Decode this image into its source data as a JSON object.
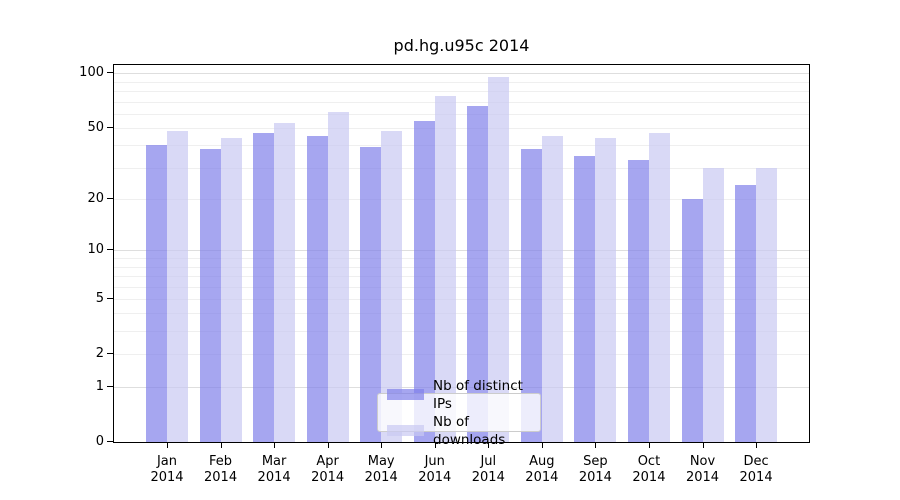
{
  "figure": {
    "background": "#ffffff",
    "frame_color": "#000000"
  },
  "chart_data": {
    "type": "bar",
    "title": "pd.hg.u95c 2014",
    "months": [
      "Jan",
      "Feb",
      "Mar",
      "Apr",
      "May",
      "Jun",
      "Jul",
      "Aug",
      "Sep",
      "Oct",
      "Nov",
      "Dec"
    ],
    "year_label": "2014",
    "categories": [
      "Jan 2014",
      "Feb 2014",
      "Mar 2014",
      "Apr 2014",
      "May 2014",
      "Jun 2014",
      "Jul 2014",
      "Aug 2014",
      "Sep 2014",
      "Oct 2014",
      "Nov 2014",
      "Dec 2014"
    ],
    "series": [
      {
        "name": "Nb of distinct IPs",
        "color": "rgba(128,128,234,0.7)",
        "approx_hex": "#a6a6f0",
        "values": [
          40,
          38,
          47,
          45,
          39,
          55,
          66,
          38,
          35,
          33,
          20,
          24
        ]
      },
      {
        "name": "Nb of downloads",
        "color": "rgba(201,201,242,0.7)",
        "approx_hex": "#d9d9f6",
        "values": [
          48,
          44,
          53,
          61,
          48,
          75,
          95,
          45,
          44,
          47,
          30,
          30
        ]
      }
    ],
    "xlabel": "",
    "ylabel": "",
    "y_scale": "log1p",
    "ylim": [
      0,
      114
    ],
    "y_ticks": [
      0,
      1,
      2,
      5,
      10,
      20,
      50,
      100
    ],
    "grid": {
      "minor_values": [
        2,
        3,
        4,
        5,
        6,
        7,
        8,
        9,
        20,
        30,
        40,
        50,
        60,
        70,
        80,
        90
      ],
      "major_values": [
        1,
        10,
        100
      ],
      "minor_color": "#efefef",
      "major_color": "#dedede"
    },
    "legend_position": "lower center"
  }
}
